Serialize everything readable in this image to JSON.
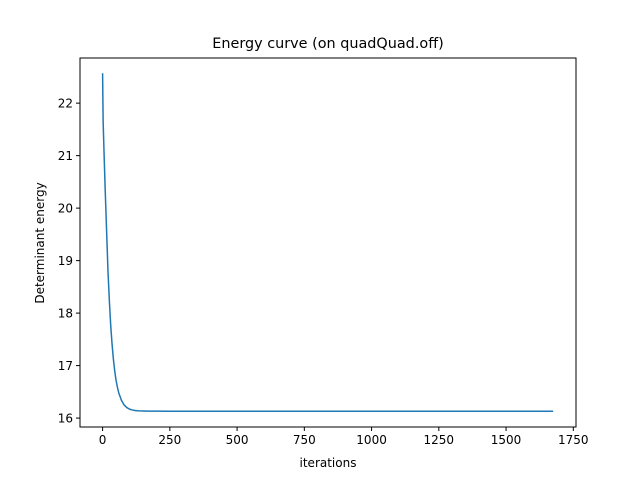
{
  "chart_data": {
    "type": "line",
    "title": "Energy curve (on quadQuad.off)",
    "xlabel": "iterations",
    "ylabel": "Determinant energy",
    "xlim": [
      -84,
      1760
    ],
    "ylim": [
      15.83,
      22.86
    ],
    "x_ticks": [
      0,
      250,
      500,
      750,
      1000,
      1250,
      1500,
      1750
    ],
    "x_tick_labels": [
      "0",
      "250",
      "500",
      "750",
      "1000",
      "1250",
      "1500",
      "1750"
    ],
    "y_ticks": [
      16,
      17,
      18,
      19,
      20,
      21,
      22
    ],
    "y_tick_labels": [
      "16",
      "17",
      "18",
      "19",
      "20",
      "21",
      "22"
    ],
    "grid": false,
    "legend": "none",
    "series": [
      {
        "color": "#1f77b4",
        "x": [
          0,
          2,
          4,
          6,
          8,
          10,
          12,
          15,
          18,
          20,
          25,
          30,
          35,
          40,
          45,
          50,
          55,
          60,
          70,
          80,
          90,
          100,
          110,
          120,
          130,
          140,
          150,
          175,
          200,
          250,
          300,
          400,
          500,
          750,
          1000,
          1250,
          1500,
          1675
        ],
        "y": [
          22.57,
          21.65,
          21.3,
          20.95,
          20.62,
          20.3,
          20.0,
          19.55,
          19.1,
          18.8,
          18.25,
          17.78,
          17.42,
          17.13,
          16.9,
          16.72,
          16.59,
          16.48,
          16.34,
          16.25,
          16.2,
          16.17,
          16.155,
          16.145,
          16.14,
          16.137,
          16.135,
          16.133,
          16.132,
          16.131,
          16.13,
          16.13,
          16.13,
          16.13,
          16.13,
          16.13,
          16.13,
          16.13
        ]
      }
    ]
  }
}
